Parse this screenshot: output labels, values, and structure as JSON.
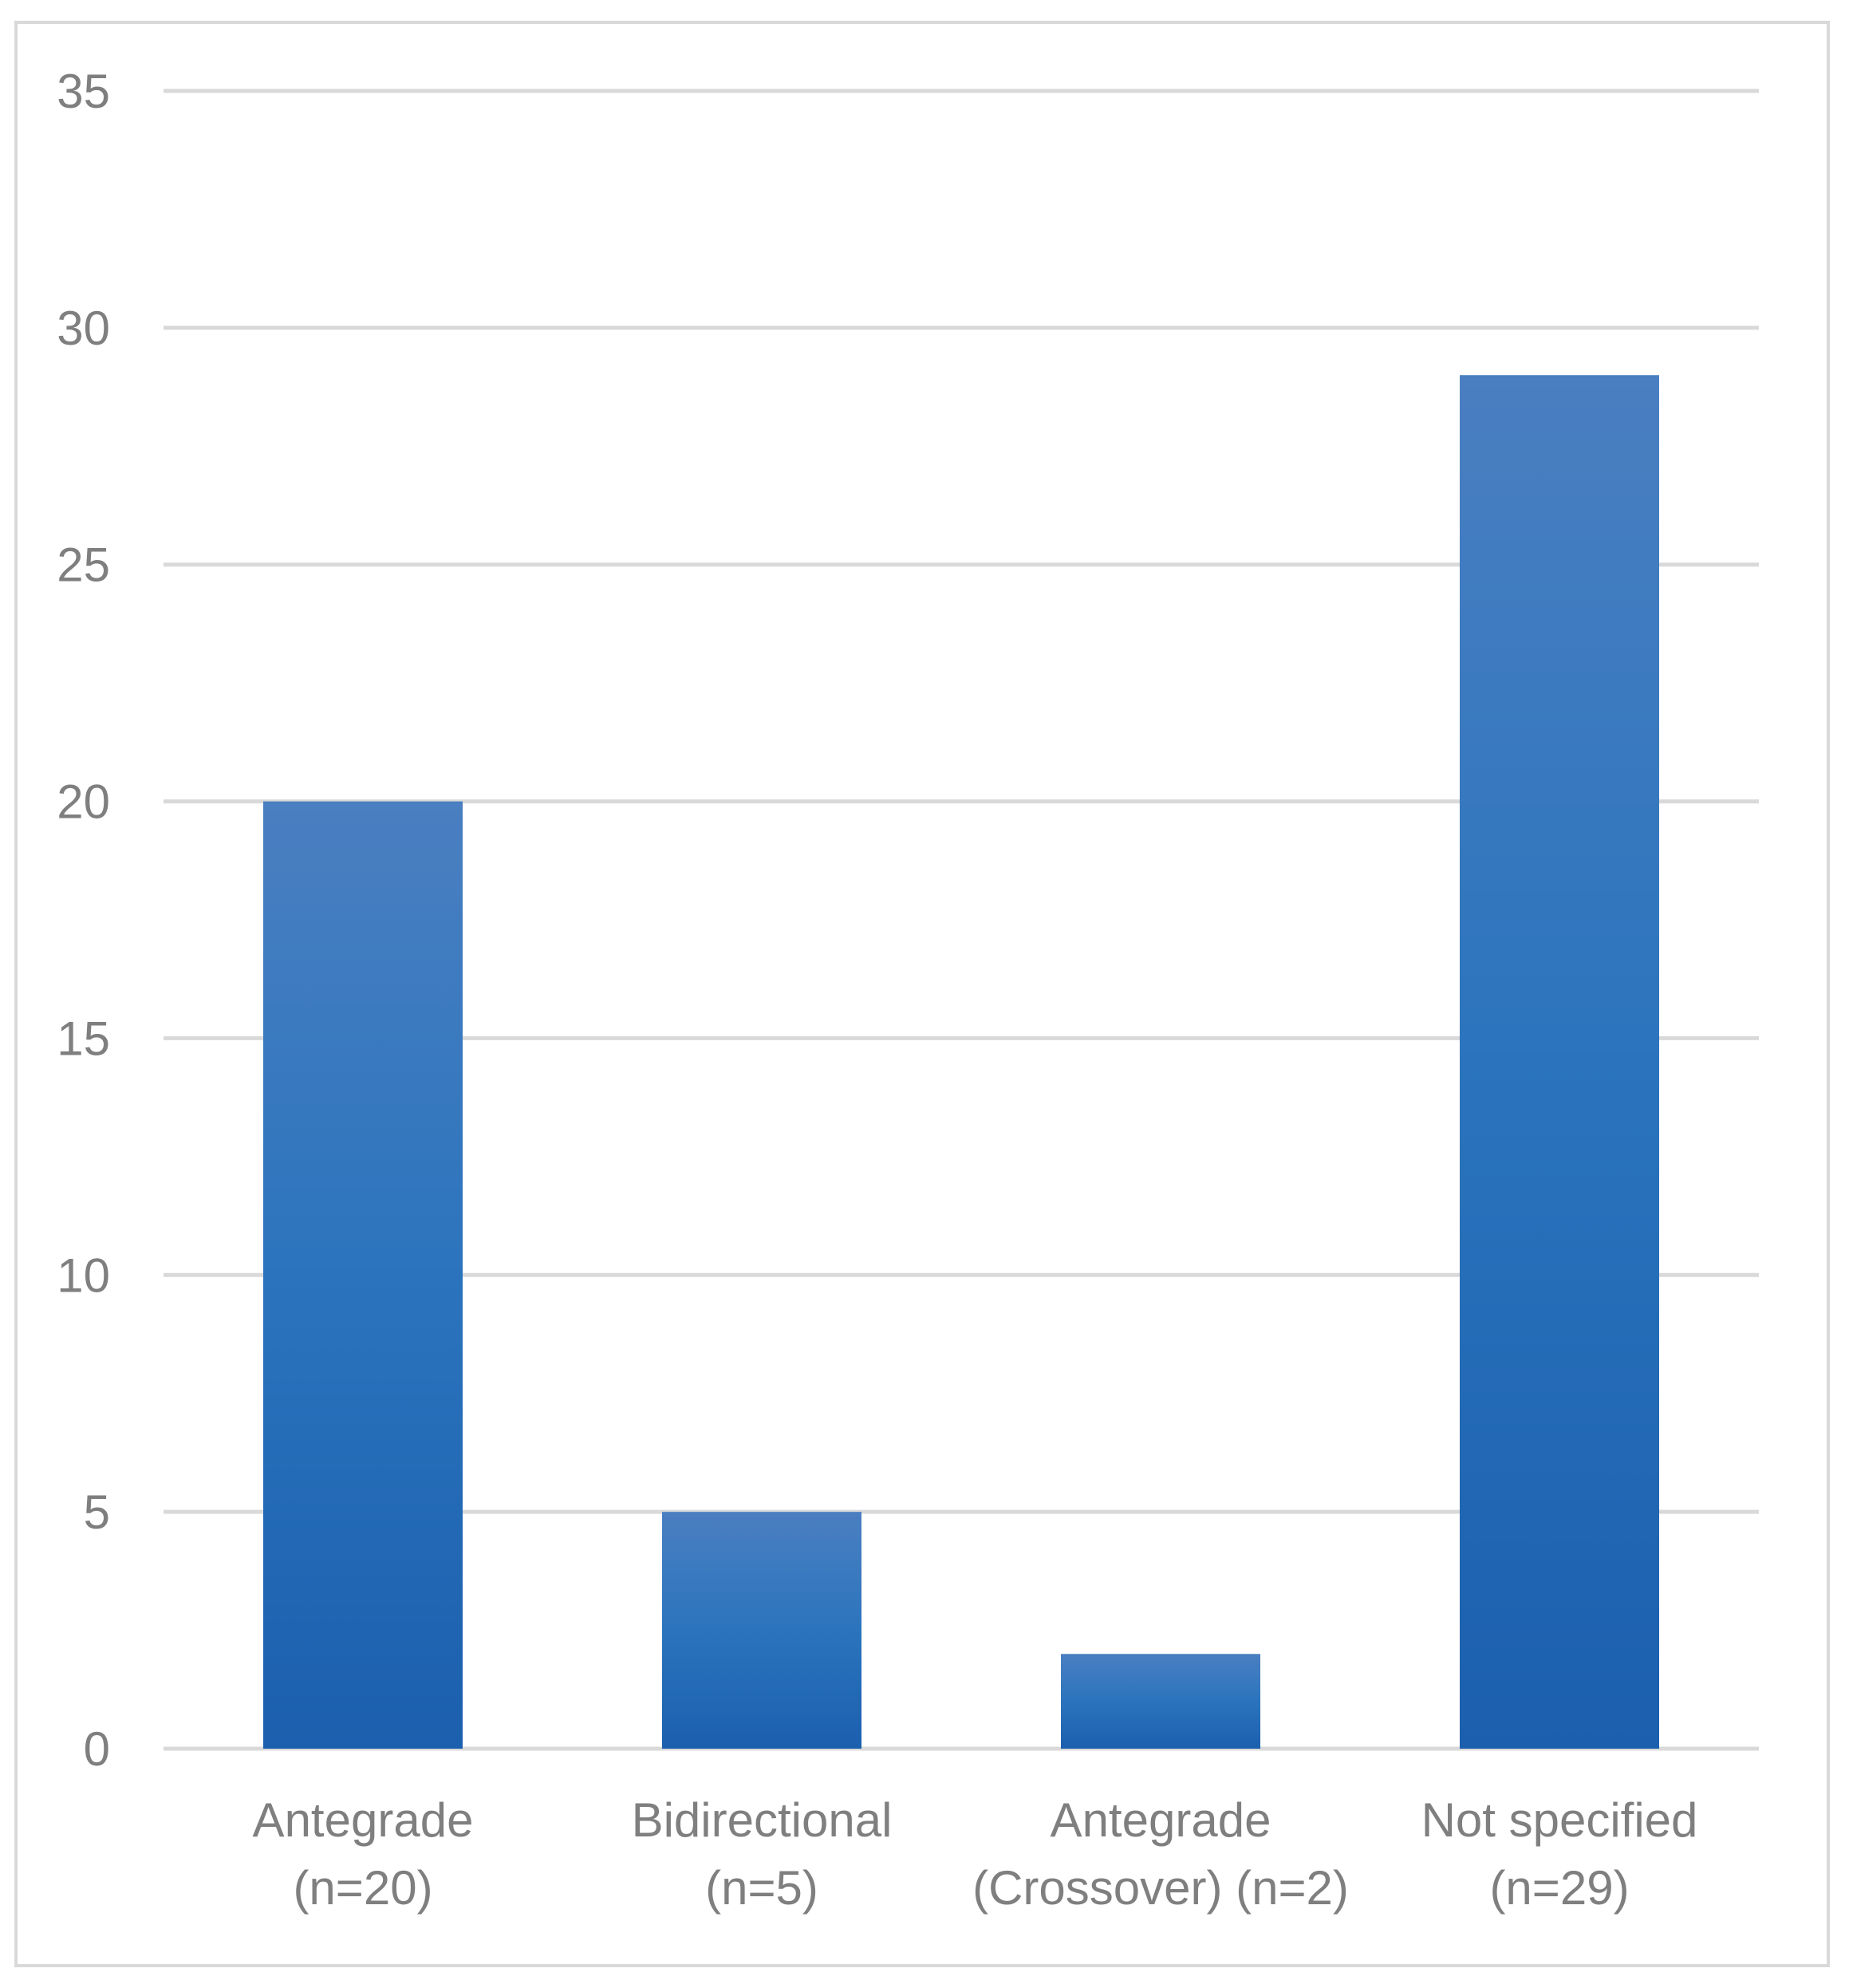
{
  "chart_data": {
    "type": "bar",
    "title": "",
    "xlabel": "",
    "ylabel": "",
    "categories": [
      [
        "Antegrade",
        "(n=20)"
      ],
      [
        "Bidirectional",
        "(n=5)"
      ],
      [
        "Antegrade",
        "(Crossover) (n=2)"
      ],
      [
        "Not specified",
        "(n=29)"
      ]
    ],
    "values": [
      20,
      5,
      2,
      29
    ],
    "ylim": [
      0,
      35
    ],
    "yticks": [
      0,
      5,
      10,
      15,
      20,
      25,
      30,
      35
    ],
    "grid": true,
    "legend": "none",
    "colors": {
      "bar_top": "#4a7fc1",
      "bar_mid": "#2b74bd",
      "bar_bottom": "#1b5fae",
      "grid": "#d9d9d9",
      "text": "#7f7f7f"
    }
  }
}
